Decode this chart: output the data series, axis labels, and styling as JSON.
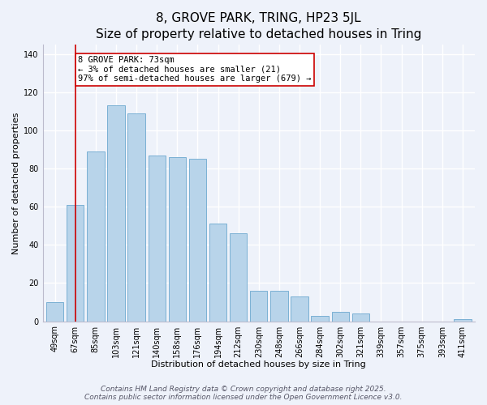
{
  "title": "8, GROVE PARK, TRING, HP23 5JL",
  "subtitle": "Size of property relative to detached houses in Tring",
  "xlabel": "Distribution of detached houses by size in Tring",
  "ylabel": "Number of detached properties",
  "bar_labels": [
    "49sqm",
    "67sqm",
    "85sqm",
    "103sqm",
    "121sqm",
    "140sqm",
    "158sqm",
    "176sqm",
    "194sqm",
    "212sqm",
    "230sqm",
    "248sqm",
    "266sqm",
    "284sqm",
    "302sqm",
    "321sqm",
    "339sqm",
    "357sqm",
    "375sqm",
    "393sqm",
    "411sqm"
  ],
  "bar_values": [
    10,
    61,
    89,
    113,
    109,
    87,
    86,
    85,
    51,
    46,
    16,
    16,
    13,
    3,
    5,
    4,
    0,
    0,
    0,
    0,
    1
  ],
  "bar_color": "#b8d4ea",
  "bar_edge_color": "#7ab0d4",
  "vline_x_index": 1,
  "vline_color": "#cc0000",
  "annotation_text": "8 GROVE PARK: 73sqm\n← 3% of detached houses are smaller (21)\n97% of semi-detached houses are larger (679) →",
  "annotation_box_color": "#ffffff",
  "annotation_box_edge": "#cc0000",
  "ylim": [
    0,
    145
  ],
  "yticks": [
    0,
    20,
    40,
    60,
    80,
    100,
    120,
    140
  ],
  "footer_line1": "Contains HM Land Registry data © Crown copyright and database right 2025.",
  "footer_line2": "Contains public sector information licensed under the Open Government Licence v3.0.",
  "bg_color": "#eef2fa",
  "grid_color": "#ffffff",
  "title_fontsize": 11,
  "axis_label_fontsize": 8,
  "tick_fontsize": 7,
  "annotation_fontsize": 7.5,
  "footer_fontsize": 6.5
}
